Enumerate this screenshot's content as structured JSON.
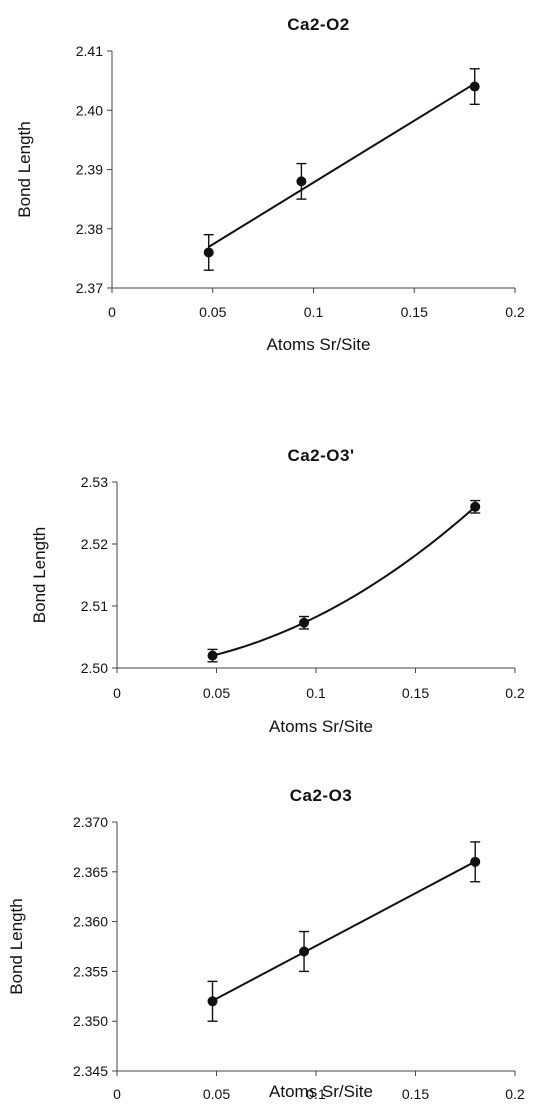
{
  "chart_data": [
    {
      "type": "scatter",
      "title": "Ca2-O2",
      "xlabel": "Atoms Sr/Site",
      "ylabel": "Bond Length",
      "xlim": [
        0,
        0.2
      ],
      "ylim": [
        2.37,
        2.41
      ],
      "x_ticks": [
        "0",
        "0.05",
        "0.1",
        "0.15",
        "0.2"
      ],
      "y_ticks": [
        "2.37",
        "2.38",
        "2.39",
        "2.40",
        "2.41"
      ],
      "fit": "linear",
      "x": [
        0.048,
        0.094,
        0.18
      ],
      "y": [
        2.376,
        2.388,
        2.404
      ],
      "error": [
        0.003,
        0.003,
        0.003
      ],
      "grid": false
    },
    {
      "type": "scatter",
      "title": "Ca2-O3'",
      "xlabel": "Atoms Sr/Site",
      "ylabel": "Bond Length",
      "xlim": [
        0,
        0.2
      ],
      "ylim": [
        2.5,
        2.53
      ],
      "x_ticks": [
        "0",
        "0.05",
        "0.1",
        "0.15",
        "0.2"
      ],
      "y_ticks": [
        "2.50",
        "2.51",
        "2.52",
        "2.53"
      ],
      "fit": "curve",
      "x": [
        0.048,
        0.094,
        0.18
      ],
      "y": [
        2.502,
        2.5073,
        2.526
      ],
      "error": [
        0.001,
        0.001,
        0.001
      ],
      "grid": false
    },
    {
      "type": "scatter",
      "title": "Ca2-O3",
      "xlabel": "Atoms Sr/Site",
      "ylabel": "Bond Length",
      "xlim": [
        0,
        0.2
      ],
      "ylim": [
        2.345,
        2.37
      ],
      "x_ticks": [
        "0",
        "0.05",
        "0.1",
        "0.15",
        "0.2"
      ],
      "y_ticks": [
        "2.345",
        "2.350",
        "2.355",
        "2.360",
        "2.365",
        "2.370"
      ],
      "fit": "linear",
      "x": [
        0.048,
        0.094,
        0.18
      ],
      "y": [
        2.352,
        2.357,
        2.366
      ],
      "error": [
        0.002,
        0.002,
        0.002
      ],
      "grid": false
    }
  ]
}
